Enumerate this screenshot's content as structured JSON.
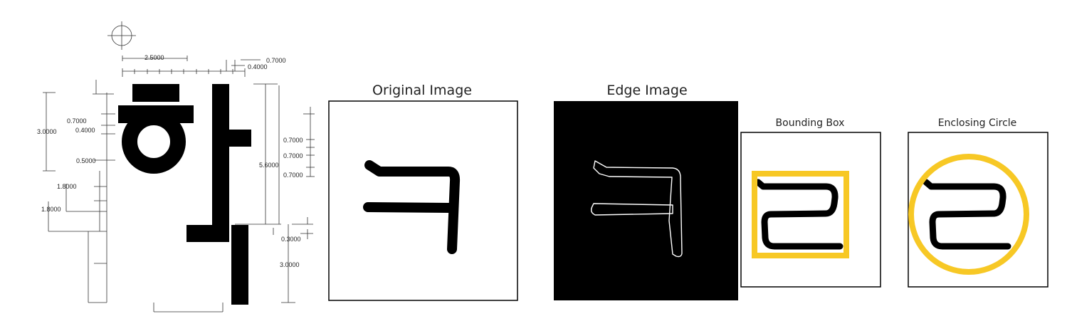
{
  "spec_drawing": {
    "glyph": "하",
    "dimensions": {
      "top_width": "2.5000",
      "top_right_a": "0.7000",
      "top_right_b": "0.4000",
      "left_1": "0.7000",
      "left_2": "0.4000",
      "left_3": "3.0000",
      "left_4": "0.5000",
      "left_5": "1.8000",
      "left_6": "1.8000",
      "right_1": "0.7000",
      "right_2": "0.7000",
      "right_3": "5.6000",
      "right_4": "0.7000",
      "right_5": "0.3000",
      "right_6": "3.0000"
    }
  },
  "panels": {
    "original": {
      "title": "Original Image",
      "glyph": "ㅋ"
    },
    "edge": {
      "title": "Edge Image",
      "glyph": "ㅋ"
    },
    "bounding": {
      "title": "Bounding Box",
      "glyph": "ㄹ"
    },
    "circle": {
      "title": "Enclosing Circle",
      "glyph": "ㄹ"
    }
  },
  "colors": {
    "ink": "#000000",
    "highlight": "#f7c825",
    "edge_bg": "#000000",
    "edge_line": "#ffffff"
  }
}
